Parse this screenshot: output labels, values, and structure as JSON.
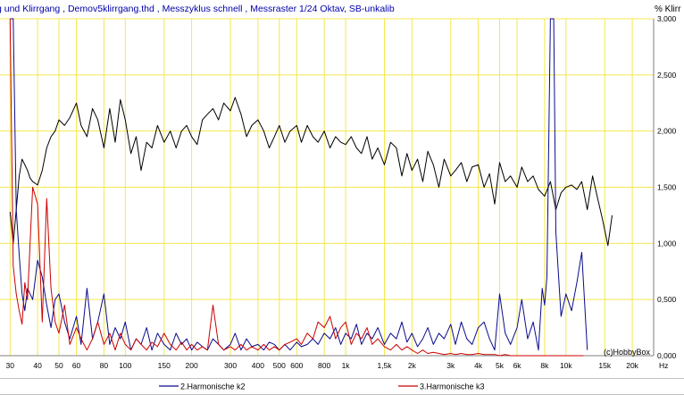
{
  "header": {
    "title": "g und Klirrgang , Demov5klirrgang.thd , Messzyklus schnell , Messraster 1/24 Oktav, SB-unkalib",
    "unit": "% Klirr"
  },
  "copyright": "(c)HobbyBox",
  "chart_data": {
    "type": "line",
    "xscale": "log",
    "xlabel": "Hz",
    "xlim": [
      27,
      25000
    ],
    "ylim": [
      0,
      3
    ],
    "x_ticks": [
      {
        "v": 30,
        "label": "30"
      },
      {
        "v": 40,
        "label": "40"
      },
      {
        "v": 50,
        "label": "50"
      },
      {
        "v": 60,
        "label": "60"
      },
      {
        "v": 80,
        "label": "80"
      },
      {
        "v": 100,
        "label": "100"
      },
      {
        "v": 150,
        "label": "150"
      },
      {
        "v": 200,
        "label": "200"
      },
      {
        "v": 300,
        "label": "300"
      },
      {
        "v": 400,
        "label": "400"
      },
      {
        "v": 500,
        "label": "500"
      },
      {
        "v": 600,
        "label": "600"
      },
      {
        "v": 800,
        "label": "800"
      },
      {
        "v": 1000,
        "label": "1k"
      },
      {
        "v": 1500,
        "label": "1,5k"
      },
      {
        "v": 2000,
        "label": "2k"
      },
      {
        "v": 3000,
        "label": "3k"
      },
      {
        "v": 4000,
        "label": "4k"
      },
      {
        "v": 5000,
        "label": "5k"
      },
      {
        "v": 6000,
        "label": "6k"
      },
      {
        "v": 8000,
        "label": "8k"
      },
      {
        "v": 10000,
        "label": "10k"
      },
      {
        "v": 15000,
        "label": "15k"
      },
      {
        "v": 20000,
        "label": "20k"
      }
    ],
    "y_ticks": [
      {
        "v": 3.0,
        "label": "3,000"
      },
      {
        "v": 2.5,
        "label": "2,500"
      },
      {
        "v": 2.0,
        "label": "2,000"
      },
      {
        "v": 1.5,
        "label": "1,500"
      },
      {
        "v": 1.0,
        "label": "1,000"
      },
      {
        "v": 0.5,
        "label": "0,500"
      },
      {
        "v": 0.0,
        "label": "0,000"
      }
    ],
    "grid": true,
    "legend_position": "bottom",
    "series": [
      {
        "name": "",
        "color": "#000000",
        "x": [
          30,
          31,
          32,
          33,
          34,
          35,
          36,
          37,
          38,
          40,
          42,
          44,
          46,
          48,
          50,
          53,
          56,
          60,
          63,
          67,
          71,
          75,
          80,
          85,
          90,
          95,
          100,
          106,
          112,
          118,
          125,
          132,
          140,
          150,
          160,
          170,
          180,
          190,
          200,
          212,
          224,
          236,
          250,
          265,
          280,
          300,
          315,
          335,
          355,
          375,
          400,
          425,
          450,
          475,
          500,
          530,
          560,
          600,
          630,
          670,
          710,
          750,
          800,
          850,
          900,
          950,
          1000,
          1060,
          1120,
          1180,
          1250,
          1320,
          1400,
          1500,
          1600,
          1700,
          1800,
          1900,
          2000,
          2120,
          2240,
          2360,
          2500,
          2650,
          2800,
          3000,
          3150,
          3350,
          3550,
          3750,
          4000,
          4250,
          4500,
          4750,
          5000,
          5300,
          5600,
          6000,
          6300,
          6700,
          7100,
          7500,
          8000,
          8500,
          9000,
          9500,
          10000,
          10600,
          11200,
          11800,
          12500,
          13200,
          14000,
          14700,
          15500,
          16200
        ],
        "values": [
          1.28,
          1.0,
          1.3,
          1.6,
          1.75,
          1.7,
          1.65,
          1.58,
          1.55,
          1.52,
          1.65,
          1.85,
          1.95,
          2.0,
          2.1,
          2.05,
          2.12,
          2.25,
          2.05,
          1.95,
          2.2,
          2.1,
          1.85,
          2.2,
          1.9,
          2.28,
          2.1,
          1.8,
          1.95,
          1.65,
          1.9,
          1.85,
          2.05,
          1.9,
          2.0,
          1.85,
          2.0,
          2.05,
          1.95,
          1.88,
          2.1,
          2.15,
          2.2,
          2.1,
          2.25,
          2.18,
          2.3,
          2.15,
          1.95,
          2.05,
          2.1,
          2.0,
          1.85,
          1.95,
          2.05,
          1.9,
          2.0,
          2.05,
          1.9,
          2.05,
          1.95,
          1.9,
          2.0,
          1.85,
          1.95,
          1.9,
          1.88,
          1.95,
          1.85,
          1.8,
          1.95,
          1.75,
          1.85,
          1.7,
          1.9,
          1.85,
          1.6,
          1.8,
          1.65,
          1.75,
          1.55,
          1.82,
          1.7,
          1.5,
          1.75,
          1.6,
          1.65,
          1.72,
          1.55,
          1.68,
          1.7,
          1.5,
          1.62,
          1.35,
          1.72,
          1.55,
          1.6,
          1.5,
          1.68,
          1.55,
          1.6,
          1.48,
          1.42,
          1.55,
          1.3,
          1.45,
          1.5,
          1.52,
          1.48,
          1.55,
          1.3,
          1.6,
          1.38,
          1.2,
          0.98,
          1.25
        ]
      },
      {
        "name": "2.Harmonische k2",
        "color": "#0a0a8c",
        "x": [
          30,
          31,
          32,
          33,
          34,
          35,
          36,
          38,
          40,
          42,
          44,
          46,
          48,
          50,
          53,
          56,
          60,
          63,
          67,
          71,
          75,
          80,
          85,
          90,
          95,
          100,
          106,
          112,
          118,
          125,
          132,
          140,
          150,
          160,
          170,
          180,
          190,
          200,
          212,
          224,
          236,
          250,
          265,
          280,
          300,
          315,
          335,
          355,
          375,
          400,
          425,
          450,
          475,
          500,
          530,
          560,
          600,
          630,
          670,
          710,
          750,
          800,
          850,
          900,
          950,
          1000,
          1060,
          1120,
          1180,
          1250,
          1320,
          1400,
          1500,
          1600,
          1700,
          1800,
          1900,
          2000,
          2120,
          2240,
          2360,
          2500,
          2650,
          2800,
          3000,
          3150,
          3350,
          3550,
          3750,
          4000,
          4250,
          4500,
          4750,
          5000,
          5300,
          5600,
          6000,
          6300,
          6700,
          7100,
          7500,
          7800,
          8000,
          8200,
          8500,
          8800,
          9000,
          9500,
          10000,
          10600,
          11200,
          11800,
          12500
        ],
        "values": [
          3.0,
          3.0,
          1.3,
          0.9,
          0.55,
          0.4,
          0.6,
          0.5,
          0.85,
          0.7,
          0.45,
          0.25,
          0.5,
          0.55,
          0.3,
          0.15,
          0.35,
          0.1,
          0.6,
          0.15,
          0.3,
          0.55,
          0.1,
          0.25,
          0.15,
          0.3,
          0.05,
          0.15,
          0.1,
          0.25,
          0.05,
          0.2,
          0.1,
          0.05,
          0.2,
          0.1,
          0.15,
          0.05,
          0.12,
          0.08,
          0.05,
          0.15,
          0.1,
          0.05,
          0.1,
          0.2,
          0.05,
          0.15,
          0.08,
          0.1,
          0.05,
          0.12,
          0.1,
          0.05,
          0.1,
          0.05,
          0.12,
          0.08,
          0.1,
          0.15,
          0.1,
          0.2,
          0.15,
          0.25,
          0.1,
          0.2,
          0.15,
          0.28,
          0.1,
          0.2,
          0.15,
          0.25,
          0.1,
          0.2,
          0.15,
          0.3,
          0.12,
          0.2,
          0.08,
          0.15,
          0.25,
          0.1,
          0.2,
          0.15,
          0.28,
          0.1,
          0.3,
          0.15,
          0.1,
          0.25,
          0.3,
          0.15,
          0.05,
          0.55,
          0.2,
          0.1,
          0.25,
          0.5,
          0.15,
          0.3,
          0.05,
          0.6,
          0.45,
          0.7,
          3.0,
          3.0,
          1.1,
          0.35,
          0.55,
          0.4,
          0.65,
          0.92,
          0.05
        ]
      },
      {
        "name": "3.Harmonische k3",
        "color": "#cc0000",
        "x": [
          30,
          31,
          32,
          33,
          34,
          35,
          36,
          38,
          40,
          42,
          44,
          46,
          48,
          50,
          53,
          56,
          60,
          63,
          67,
          71,
          75,
          80,
          85,
          90,
          95,
          100,
          106,
          112,
          118,
          125,
          132,
          140,
          150,
          160,
          170,
          180,
          190,
          200,
          212,
          224,
          236,
          250,
          265,
          280,
          300,
          315,
          335,
          355,
          375,
          400,
          425,
          450,
          475,
          500,
          530,
          560,
          600,
          630,
          670,
          710,
          750,
          800,
          850,
          900,
          950,
          1000,
          1060,
          1120,
          1180,
          1250,
          1320,
          1400,
          1500,
          1600,
          1700,
          1800,
          1900,
          2000,
          2120,
          2240,
          2360,
          2500,
          2650,
          2800,
          3000,
          3150,
          3350,
          3550,
          3750,
          4000,
          4250,
          4500,
          4750,
          5000,
          5300,
          5600,
          6000,
          6300,
          6700,
          7100,
          7500,
          8000,
          9000,
          10000,
          11000,
          12000
        ],
        "values": [
          3.0,
          0.8,
          0.55,
          0.4,
          0.28,
          0.65,
          0.5,
          1.5,
          1.35,
          0.3,
          1.4,
          0.6,
          0.3,
          0.2,
          0.45,
          0.1,
          0.25,
          0.15,
          0.05,
          0.15,
          0.3,
          0.1,
          0.2,
          0.05,
          0.2,
          0.1,
          0.05,
          0.15,
          0.1,
          0.05,
          0.12,
          0.08,
          0.2,
          0.1,
          0.05,
          0.12,
          0.05,
          0.1,
          0.05,
          0.08,
          0.05,
          0.45,
          0.1,
          0.05,
          0.08,
          0.05,
          0.1,
          0.05,
          0.08,
          0.05,
          0.1,
          0.05,
          0.08,
          0.05,
          0.1,
          0.12,
          0.15,
          0.1,
          0.2,
          0.15,
          0.3,
          0.25,
          0.35,
          0.15,
          0.25,
          0.3,
          0.1,
          0.2,
          0.15,
          0.25,
          0.1,
          0.15,
          0.08,
          0.05,
          0.1,
          0.05,
          0.08,
          0.05,
          0.02,
          0.05,
          0.02,
          0.03,
          0.02,
          0.01,
          0.02,
          0.01,
          0.02,
          0.01,
          0.01,
          0.02,
          0.01,
          0.01,
          0.01,
          0.0,
          0.01,
          0.0,
          0.0,
          0.0,
          0.0,
          0.0,
          0.0,
          0.0,
          0.0,
          0.0,
          0.0,
          0.0
        ]
      }
    ]
  },
  "colors": {
    "grid": "#f5e84b",
    "plot_bg": "#ffffff",
    "frame": "#808080"
  }
}
